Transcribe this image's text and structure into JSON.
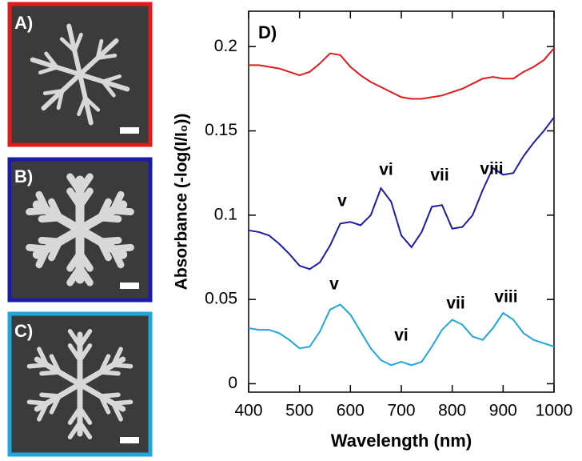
{
  "panels": [
    {
      "label": "A)"
    },
    {
      "label": "B)"
    },
    {
      "label": "C)"
    }
  ],
  "chart_data": {
    "type": "line",
    "panel_label": "D)",
    "x_label": "Wavelength (nm)",
    "y_label": "Absorbance (-log(I/I₀))",
    "x": [
      400,
      420,
      440,
      460,
      480,
      500,
      520,
      540,
      560,
      580,
      600,
      620,
      640,
      660,
      680,
      700,
      720,
      740,
      760,
      780,
      800,
      820,
      840,
      860,
      880,
      900,
      920,
      940,
      960,
      980,
      1000
    ],
    "series": [
      {
        "color": "#e3191c",
        "values": [
          0.189,
          0.189,
          0.188,
          0.187,
          0.185,
          0.183,
          0.185,
          0.19,
          0.196,
          0.195,
          0.188,
          0.183,
          0.179,
          0.176,
          0.173,
          0.17,
          0.169,
          0.169,
          0.17,
          0.171,
          0.173,
          0.175,
          0.178,
          0.181,
          0.182,
          0.181,
          0.181,
          0.185,
          0.188,
          0.192,
          0.199
        ]
      },
      {
        "color": "#1c1ca8",
        "values": [
          0.091,
          0.09,
          0.088,
          0.083,
          0.077,
          0.07,
          0.068,
          0.072,
          0.082,
          0.095,
          0.096,
          0.094,
          0.1,
          0.116,
          0.108,
          0.088,
          0.081,
          0.09,
          0.105,
          0.106,
          0.092,
          0.093,
          0.1,
          0.115,
          0.128,
          0.124,
          0.125,
          0.135,
          0.143,
          0.15,
          0.158
        ]
      },
      {
        "color": "#1fa6dc",
        "values": [
          0.033,
          0.032,
          0.032,
          0.03,
          0.026,
          0.021,
          0.022,
          0.031,
          0.044,
          0.047,
          0.041,
          0.031,
          0.021,
          0.014,
          0.011,
          0.013,
          0.011,
          0.013,
          0.022,
          0.032,
          0.038,
          0.035,
          0.028,
          0.026,
          0.033,
          0.042,
          0.038,
          0.03,
          0.026,
          0.024,
          0.022
        ]
      }
    ],
    "annotations": [
      "v",
      "vi",
      "vii",
      "viii",
      "v",
      "vi",
      "vii",
      "viii"
    ],
    "xlim": [
      400,
      1000
    ],
    "xticks": [
      400,
      500,
      600,
      700,
      800,
      900,
      1000
    ],
    "ylim": [
      -0.005,
      0.221
    ],
    "yticks": [
      0,
      0.05,
      0.1,
      0.15,
      0.2
    ]
  }
}
